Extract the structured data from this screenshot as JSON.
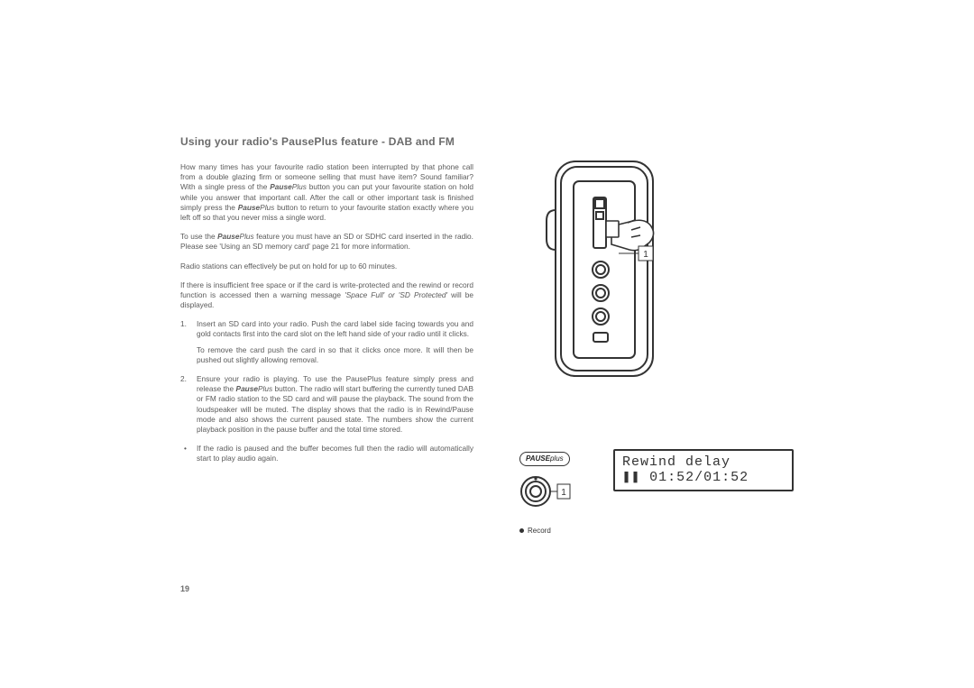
{
  "heading": "Using your radio's PausePlus feature - DAB and FM",
  "intro": {
    "p1_a": "How many times has your favourite radio station been interrupted by that phone call from a double glazing firm or someone selling that must have item? Sound familiar? With a single press of the ",
    "p1_pp1_bold": "Pause",
    "p1_pp1_ital": "Plus",
    "p1_b": " button you can put your favourite station on hold while you answer that important call. After the call or other important task is finished simply press the ",
    "p1_pp2_bold": "Pause",
    "p1_pp2_ital": "Plus",
    "p1_c": " button to return to your favourite station exactly where you left off so that you never miss a single word.",
    "p2_a": "To use the ",
    "p2_pp_bold": "Pause",
    "p2_pp_ital": "Plus",
    "p2_b": " feature you must have an SD or SDHC card inserted in the radio. Please see 'Using an SD memory card' page 21 for more information.",
    "p3": "Radio stations can effectively be put on hold for up to 60 minutes.",
    "p4_a": "If there is insufficient free space or if the card is write-protected and the rewind or record function is accessed then a warning message ",
    "p4_ital": "'Space Full' or 'SD Protected'",
    "p4_b": " will be displayed."
  },
  "steps": [
    {
      "num": "1.",
      "paras": [
        "Insert an SD card into your radio. Push the card label side facing towards you and gold contacts first into the card slot on the left hand side of your radio until it clicks.",
        "To remove the card push the card in so that it clicks once more. It will then be pushed out slightly allowing removal."
      ]
    },
    {
      "num": "2.",
      "paras": [
        "Ensure your radio is playing. To use the PausePlus feature simply press and release the <bi>Pause</bi><i>Plus</i> button. The radio will start buffering the currently tuned DAB or FM radio station to the SD card and will pause the playback. The sound from the loudspeaker will be muted. The display shows that the radio is in Rewind/Pause mode and also shows the current paused state. The numbers show the current playback position in the pause buffer and the total time stored."
      ]
    }
  ],
  "bullets": [
    "If the radio is paused and the buffer becomes full then the radio will automatically start to play audio again."
  ],
  "page_number": "19",
  "pauseplus_badge": {
    "bold": "PAUSE",
    "light": "plus"
  },
  "record_label": "Record",
  "lcd": {
    "line1": "Rewind delay",
    "line2_prefix": "❚❚ ",
    "line2_time": "01:52/01:52"
  },
  "callouts": {
    "radio": "1",
    "button": "1"
  },
  "colors": {
    "text": "#5a5a5a",
    "heading": "#6b6b6b",
    "stroke": "#333333",
    "bg": "#ffffff"
  }
}
